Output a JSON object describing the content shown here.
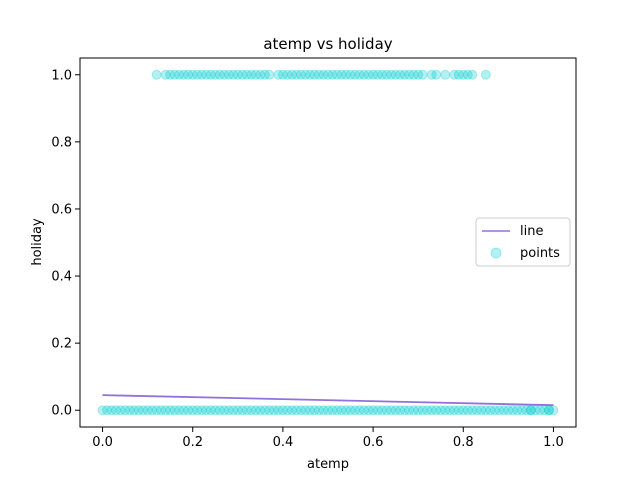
{
  "chart_data": {
    "type": "scatter",
    "title": "atemp vs holiday",
    "xlabel": "atemp",
    "ylabel": "holiday",
    "xlim": [
      -0.05,
      1.05
    ],
    "ylim": [
      -0.05,
      1.05
    ],
    "xticks": [
      "0.0",
      "0.2",
      "0.4",
      "0.6",
      "0.8",
      "1.0"
    ],
    "xtick_values": [
      0.0,
      0.2,
      0.4,
      0.6,
      0.8,
      1.0
    ],
    "yticks": [
      "0.0",
      "0.2",
      "0.4",
      "0.6",
      "0.8",
      "1.0"
    ],
    "ytick_values": [
      0.0,
      0.2,
      0.4,
      0.6,
      0.8,
      1.0
    ],
    "grid": false,
    "legend_position": "center-right",
    "series": [
      {
        "name": "line",
        "kind": "line",
        "color": "#9370db",
        "x": [
          0.0,
          1.0
        ],
        "y": [
          0.045,
          0.015
        ]
      },
      {
        "name": "points",
        "kind": "scatter",
        "color": "#00ced1",
        "opacity": 0.3,
        "y1_x": [
          0.12,
          0.14,
          0.15,
          0.16,
          0.17,
          0.18,
          0.19,
          0.2,
          0.21,
          0.22,
          0.23,
          0.24,
          0.25,
          0.26,
          0.27,
          0.28,
          0.29,
          0.3,
          0.31,
          0.32,
          0.33,
          0.34,
          0.35,
          0.36,
          0.37,
          0.39,
          0.4,
          0.41,
          0.42,
          0.43,
          0.44,
          0.45,
          0.46,
          0.47,
          0.48,
          0.49,
          0.5,
          0.51,
          0.52,
          0.53,
          0.54,
          0.55,
          0.56,
          0.57,
          0.58,
          0.59,
          0.6,
          0.61,
          0.62,
          0.63,
          0.64,
          0.65,
          0.66,
          0.67,
          0.68,
          0.69,
          0.7,
          0.71,
          0.73,
          0.74,
          0.76,
          0.78,
          0.79,
          0.8,
          0.81,
          0.82,
          0.85
        ],
        "y0_x_start": 0.0,
        "y0_x_end": 1.0,
        "y0_x_step": 0.01,
        "y0_extra_x": [
          0.95,
          0.99
        ]
      }
    ]
  }
}
